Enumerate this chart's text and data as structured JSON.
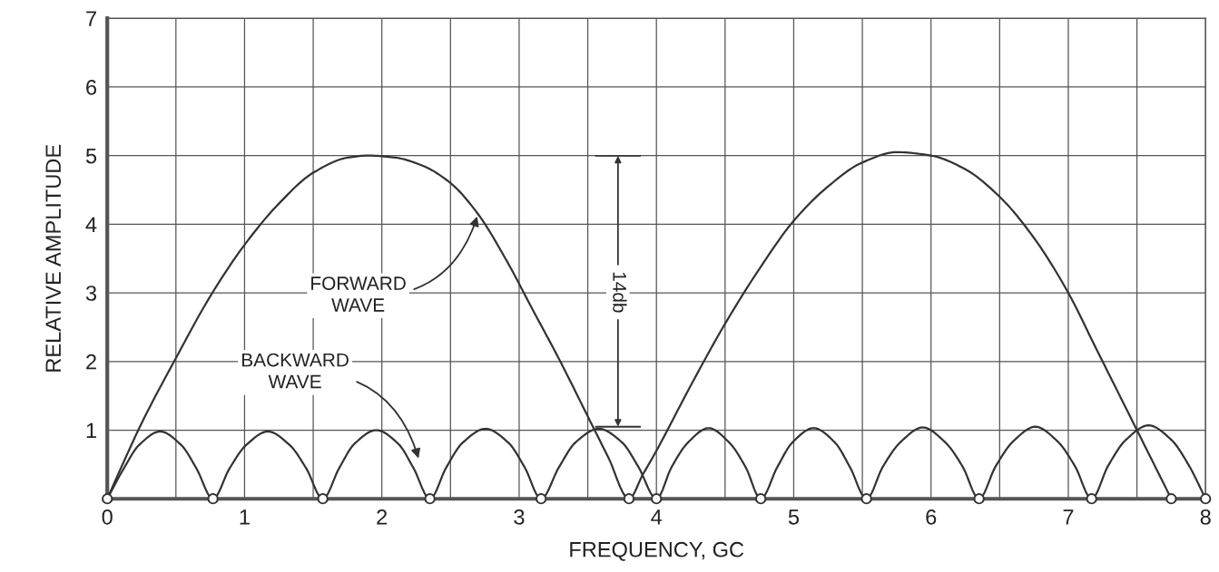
{
  "chart_data": {
    "type": "line",
    "xlabel": "FREQUENCY, GC",
    "ylabel": "RELATIVE AMPLITUDE",
    "xlim": [
      0,
      8
    ],
    "ylim": [
      0,
      7
    ],
    "xticks": [
      0,
      {
        "value": 0.5,
        "label": null
      },
      1,
      {
        "value": 1.5,
        "label": null
      },
      2,
      {
        "value": 2.5,
        "label": null
      },
      3,
      {
        "value": 3.5,
        "label": null
      },
      4,
      {
        "value": 4.5,
        "label": null
      },
      5,
      {
        "value": 5.5,
        "label": null
      },
      6,
      {
        "value": 6.5,
        "label": null
      },
      7,
      {
        "value": 7.5,
        "label": null
      },
      8
    ],
    "yticks": [
      {
        "value": 0,
        "label": null
      },
      1,
      2,
      3,
      4,
      5,
      6,
      7
    ],
    "grid": true,
    "legend": false,
    "marker": "none",
    "line_style": "solid",
    "series": [
      {
        "color": "#333333",
        "x": [
          0,
          0.1,
          0.25,
          0.5,
          0.75,
          1,
          1.25,
          1.5,
          1.75,
          1.9,
          2.1,
          2.3,
          2.5,
          2.7,
          2.9,
          3.1,
          3.3,
          3.5,
          3.65,
          3.8,
          3.9,
          4.0,
          4.25,
          4.5,
          4.75,
          5,
          5.25,
          5.5,
          5.75,
          6,
          6.25,
          6.5,
          6.75,
          7,
          7.2,
          7.4,
          7.6,
          7.75
        ],
        "values": [
          0,
          0.45,
          1.1,
          2.05,
          2.95,
          3.7,
          4.3,
          4.75,
          4.97,
          5.0,
          4.97,
          4.85,
          4.6,
          4.15,
          3.5,
          2.75,
          2.0,
          1.2,
          0.6,
          0,
          0.35,
          0.7,
          1.65,
          2.55,
          3.35,
          4.05,
          4.55,
          4.9,
          5.05,
          5.0,
          4.8,
          4.4,
          3.8,
          3.0,
          2.2,
          1.4,
          0.6,
          0
        ]
      },
      {
        "color": "#333333",
        "x": [
          0,
          0.12,
          0.23,
          0.385,
          0.54,
          0.65,
          0.77,
          0.89,
          1.01,
          1.17,
          1.33,
          1.45,
          1.57,
          1.69,
          1.8,
          1.96,
          2.12,
          2.23,
          2.35,
          2.47,
          2.59,
          2.755,
          2.92,
          3.04,
          3.16,
          3.29,
          3.41,
          3.58,
          3.75,
          3.87,
          4,
          4.11,
          4.23,
          4.38,
          4.53,
          4.65,
          4.76,
          4.88,
          4.99,
          5.145,
          5.3,
          5.41,
          5.53,
          5.65,
          5.78,
          5.94,
          6.1,
          6.23,
          6.35,
          6.47,
          6.6,
          6.76,
          6.92,
          7.05,
          7.17,
          7.29,
          7.42,
          7.585,
          7.75,
          7.88,
          8
        ],
        "values": [
          0,
          0.44,
          0.78,
          0.98,
          0.78,
          0.44,
          0,
          0.44,
          0.78,
          0.98,
          0.78,
          0.44,
          0,
          0.45,
          0.8,
          1.0,
          0.8,
          0.45,
          0,
          0.46,
          0.82,
          1.02,
          0.82,
          0.46,
          0,
          0.46,
          0.82,
          1.02,
          0.82,
          0.46,
          0,
          0.46,
          0.82,
          1.03,
          0.82,
          0.46,
          0,
          0.46,
          0.82,
          1.03,
          0.82,
          0.46,
          0,
          0.47,
          0.83,
          1.04,
          0.83,
          0.47,
          0,
          0.47,
          0.84,
          1.05,
          0.84,
          0.47,
          0,
          0.48,
          0.86,
          1.07,
          0.86,
          0.48,
          0
        ]
      },
      {
        "type": "scatter",
        "marker": "circle",
        "color": "#333333",
        "x": [
          0,
          0.77,
          1.57,
          2.35,
          3.16,
          3.8,
          4,
          4.76,
          5.53,
          6.35,
          7.17,
          7.75,
          8
        ],
        "values": [
          0,
          0,
          0,
          0,
          0,
          0,
          0,
          0,
          0,
          0,
          0,
          0,
          0
        ]
      }
    ],
    "annotations": [
      {
        "text": "FORWARD\nWAVE",
        "x": 2.7,
        "y": 4.15
      },
      "BACKWARD\nWAVE",
      "14db"
    ]
  }
}
